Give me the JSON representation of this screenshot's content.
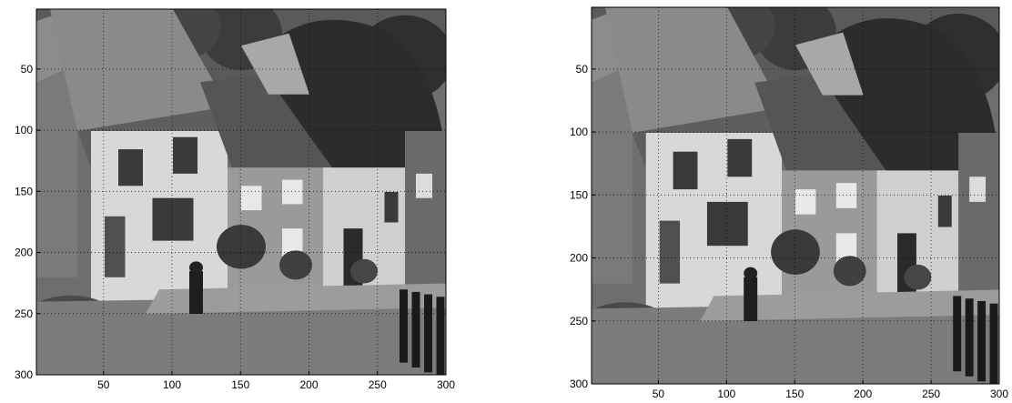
{
  "chart_data": [
    {
      "type": "image",
      "title": "",
      "xlabel": "",
      "ylabel": "",
      "xlim": [
        1,
        300
      ],
      "ylim": [
        1,
        300
      ],
      "y_reversed": true,
      "grid": true,
      "xticks": [
        50,
        100,
        150,
        200,
        250,
        300
      ],
      "yticks": [
        50,
        100,
        150,
        200,
        250,
        300
      ]
    },
    {
      "type": "image",
      "title": "",
      "xlabel": "",
      "ylabel": "",
      "xlim": [
        1,
        300
      ],
      "ylim": [
        1,
        300
      ],
      "y_reversed": true,
      "grid": true,
      "xticks": [
        50,
        100,
        150,
        200,
        250,
        300
      ],
      "yticks": [
        50,
        100,
        150,
        200,
        250,
        300
      ]
    }
  ],
  "image_content": "grayscale photo of thatched-roof cottages on a hillside street"
}
